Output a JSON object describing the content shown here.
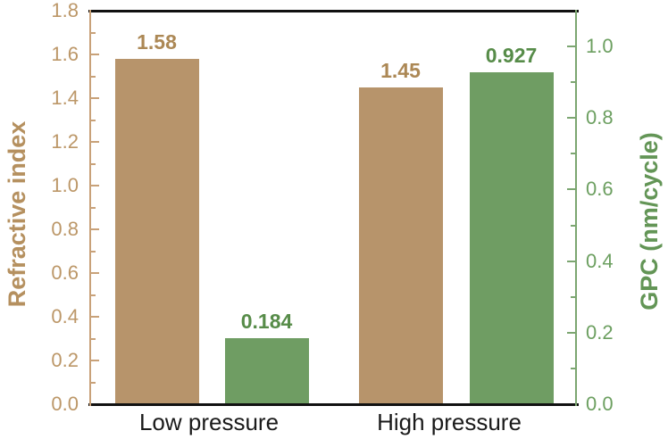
{
  "chart_data": {
    "type": "bar",
    "title": "",
    "categories": [
      "Low pressure",
      "High pressure"
    ],
    "series": [
      {
        "name": "Refractive index",
        "axis": "left",
        "values": [
          1.58,
          1.45
        ],
        "value_labels": [
          "1.58",
          "1.45"
        ],
        "bar_color": "#B7946B",
        "value_label_color": "#AC8855"
      },
      {
        "name": "GPC (nm/cycle)",
        "axis": "right",
        "values": [
          0.184,
          0.927
        ],
        "value_labels": [
          "0.184",
          "0.927"
        ],
        "bar_color": "#6F9D63",
        "value_label_color": "#578C49"
      }
    ],
    "left_axis": {
      "title": "Refractive index",
      "range": [
        0.0,
        1.8
      ],
      "major_step": 0.2,
      "minor_step": 0.1,
      "tick_labels": [
        "0.0",
        "0.2",
        "0.4",
        "0.6",
        "0.8",
        "1.0",
        "1.2",
        "1.4",
        "1.6",
        "1.8"
      ],
      "tick_label_color": "#BC9768",
      "title_color": "#B5905F",
      "spine_color": "#C8A178"
    },
    "right_axis": {
      "title": "GPC (nm/cycle)",
      "range": [
        0.0,
        1.1
      ],
      "major_step": 0.2,
      "minor_step": 0.1,
      "tick_labels": [
        "0.0",
        "0.2",
        "0.4",
        "0.6",
        "0.8",
        "1.0"
      ],
      "tick_label_color": "#6C9F60",
      "title_color": "#639556",
      "spine_color": "#7CA671"
    },
    "x_axis": {
      "tick_label_color": "#1A1A1A",
      "axis_color": "#111111"
    },
    "grid": false,
    "legend": false,
    "background": "#FFFFFF"
  }
}
